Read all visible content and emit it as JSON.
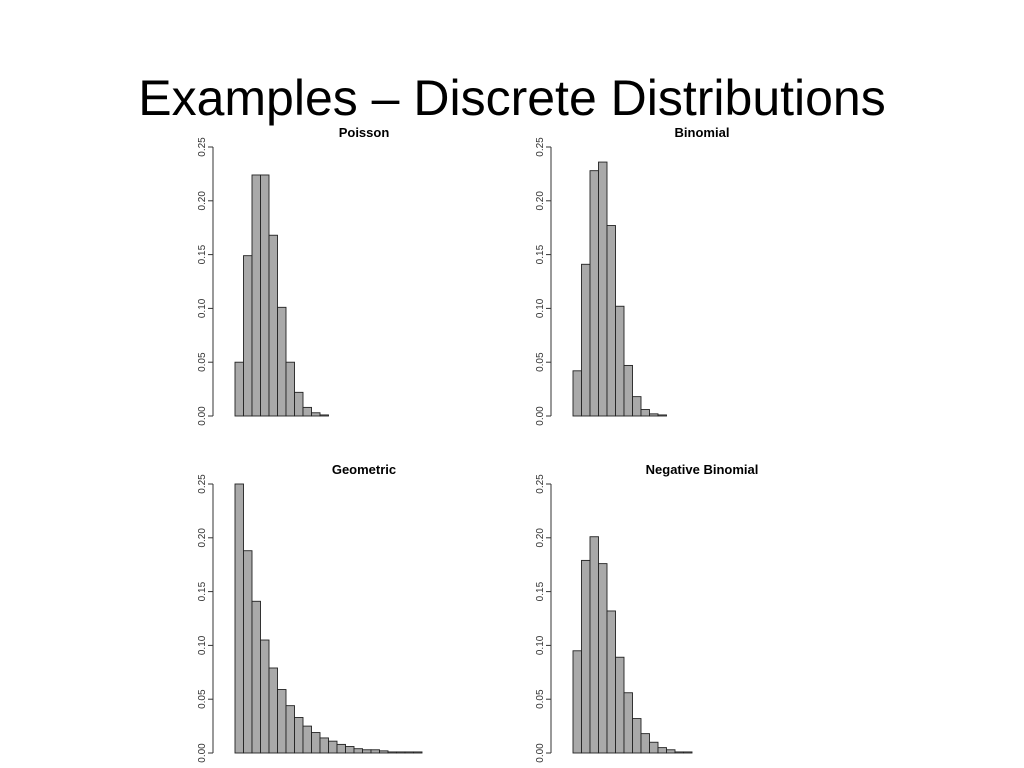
{
  "slide": {
    "title": "Examples – Discrete Distributions"
  },
  "chart_data": [
    {
      "type": "bar",
      "title": "Poisson",
      "ylim": [
        0,
        0.25
      ],
      "yticks": [
        "0.00",
        "0.05",
        "0.10",
        "0.15",
        "0.20",
        "0.25"
      ],
      "grid": false,
      "values": [
        0.05,
        0.149,
        0.224,
        0.224,
        0.168,
        0.101,
        0.05,
        0.022,
        0.008,
        0.003,
        0.001,
        0,
        0,
        0,
        0,
        0,
        0,
        0,
        0,
        0,
        0,
        0,
        0,
        0,
        0,
        0,
        0,
        0,
        0,
        0
      ]
    },
    {
      "type": "bar",
      "title": "Binomial",
      "ylim": [
        0,
        0.25
      ],
      "yticks": [
        "0.00",
        "0.05",
        "0.10",
        "0.15",
        "0.20",
        "0.25"
      ],
      "grid": false,
      "values": [
        0.042,
        0.141,
        0.228,
        0.236,
        0.177,
        0.102,
        0.047,
        0.018,
        0.006,
        0.002,
        0.001,
        0,
        0,
        0,
        0,
        0,
        0,
        0,
        0,
        0,
        0,
        0,
        0,
        0,
        0,
        0,
        0,
        0,
        0,
        0
      ]
    },
    {
      "type": "bar",
      "title": "Geometric",
      "ylim": [
        0,
        0.25
      ],
      "yticks": [
        "0.00",
        "0.05",
        "0.10",
        "0.15",
        "0.20",
        "0.25"
      ],
      "grid": false,
      "values": [
        0.25,
        0.188,
        0.141,
        0.105,
        0.079,
        0.059,
        0.044,
        0.033,
        0.025,
        0.019,
        0.014,
        0.011,
        0.008,
        0.006,
        0.004,
        0.003,
        0.003,
        0.002,
        0.001,
        0.001,
        0.001,
        0.001,
        0,
        0,
        0,
        0,
        0,
        0,
        0,
        0
      ]
    },
    {
      "type": "bar",
      "title": "Negative Binomial",
      "ylim": [
        0,
        0.25
      ],
      "yticks": [
        "0.00",
        "0.05",
        "0.10",
        "0.15",
        "0.20",
        "0.25"
      ],
      "grid": false,
      "values": [
        0.095,
        0.179,
        0.201,
        0.176,
        0.132,
        0.089,
        0.056,
        0.032,
        0.018,
        0.01,
        0.005,
        0.003,
        0.001,
        0.001,
        0,
        0,
        0,
        0,
        0,
        0,
        0,
        0,
        0,
        0,
        0,
        0,
        0,
        0,
        0,
        0
      ]
    }
  ]
}
